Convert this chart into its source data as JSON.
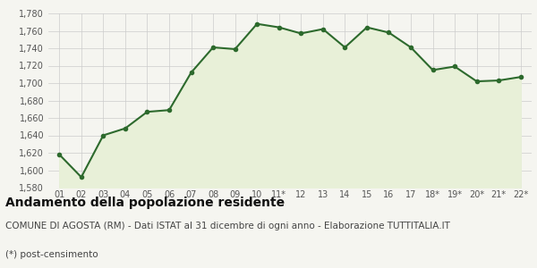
{
  "x_labels": [
    "01",
    "02",
    "03",
    "04",
    "05",
    "06",
    "07",
    "08",
    "09",
    "10",
    "11*",
    "12",
    "13",
    "14",
    "15",
    "16",
    "17",
    "18*",
    "19*",
    "20*",
    "21*",
    "22*"
  ],
  "y_values": [
    1618,
    1592,
    1640,
    1648,
    1667,
    1669,
    1712,
    1741,
    1739,
    1768,
    1764,
    1757,
    1762,
    1741,
    1764,
    1758,
    1741,
    1715,
    1719,
    1702,
    1703,
    1707
  ],
  "line_color": "#2d6a2d",
  "fill_color": "#e8f0d8",
  "marker": "o",
  "marker_size": 3,
  "line_width": 1.5,
  "ylim": [
    1580,
    1780
  ],
  "yticks": [
    1580,
    1600,
    1620,
    1640,
    1660,
    1680,
    1700,
    1720,
    1740,
    1760,
    1780
  ],
  "background_color": "#f5f5f0",
  "grid_color": "#cccccc",
  "title_bold": "Andamento della popolazione residente",
  "subtitle": "COMUNE DI AGOSTA (RM) - Dati ISTAT al 31 dicembre di ogni anno - Elaborazione TUTTITALIA.IT",
  "footnote": "(*) post-censimento",
  "title_fontsize": 10,
  "subtitle_fontsize": 7.5,
  "footnote_fontsize": 7.5,
  "tick_fontsize": 7
}
